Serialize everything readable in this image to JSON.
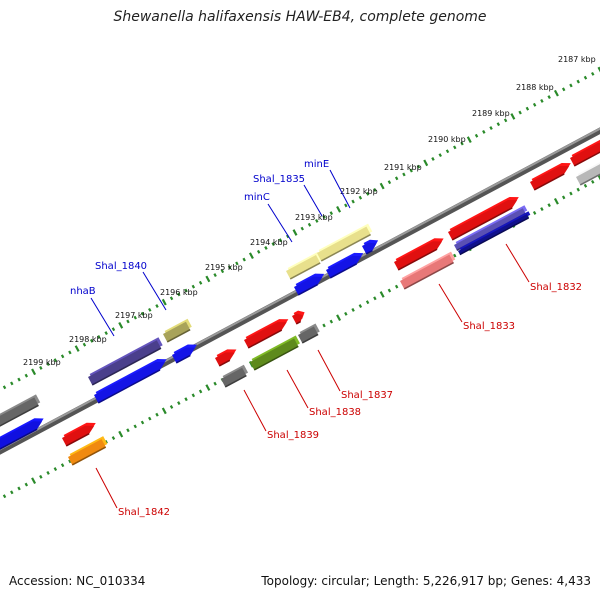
{
  "title": "Shewanella halifaxensis HAW-EB4, complete genome",
  "footer": {
    "accession": "Accession: NC_010334",
    "summary": "Topology: circular; Length: 5,226,917 bp; Genes: 4,433"
  },
  "colors": {
    "backbone": "#7a7a7a",
    "tick": "#2a8a2a",
    "label_forward": "#0000cc",
    "label_reverse": "#cc0000"
  },
  "scale_ticks": [
    {
      "label": "2187 kbp",
      "kbp": 2187
    },
    {
      "label": "2188 kbp",
      "kbp": 2188
    },
    {
      "label": "2189 kbp",
      "kbp": 2189
    },
    {
      "label": "2190 kbp",
      "kbp": 2190
    },
    {
      "label": "2191 kbp",
      "kbp": 2191
    },
    {
      "label": "2192 kbp",
      "kbp": 2192
    },
    {
      "label": "2193 kbp",
      "kbp": 2193
    },
    {
      "label": "2194 kbp",
      "kbp": 2194
    },
    {
      "label": "2195 kbp",
      "kbp": 2195
    },
    {
      "label": "2196 kbp",
      "kbp": 2196
    },
    {
      "label": "2197 kbp",
      "kbp": 2197
    },
    {
      "label": "2198 kbp",
      "kbp": 2198
    },
    {
      "label": "2199 kbp",
      "kbp": 2199
    }
  ],
  "gene_labels": [
    {
      "id": "minE",
      "text": "minE",
      "strand": "forward"
    },
    {
      "id": "shal1835",
      "text": "Shal_1835",
      "strand": "forward"
    },
    {
      "id": "minC",
      "text": "minC",
      "strand": "forward"
    },
    {
      "id": "shal1840",
      "text": "Shal_1840",
      "strand": "forward"
    },
    {
      "id": "nhaB",
      "text": "nhaB",
      "strand": "forward"
    },
    {
      "id": "shal1832",
      "text": "Shal_1832",
      "strand": "reverse"
    },
    {
      "id": "shal1833",
      "text": "Shal_1833",
      "strand": "reverse"
    },
    {
      "id": "shal1837",
      "text": "Shal_1837",
      "strand": "reverse"
    },
    {
      "id": "shal1838",
      "text": "Shal_1838",
      "strand": "reverse"
    },
    {
      "id": "shal1839",
      "text": "Shal_1839",
      "strand": "reverse"
    },
    {
      "id": "shal1842",
      "text": "Shal_1842",
      "strand": "reverse"
    }
  ],
  "features": [
    {
      "name": "feature-gray-far-left",
      "color": "#666666"
    },
    {
      "name": "feature-blue-far-left",
      "color": "#1010e0"
    },
    {
      "name": "feature-nhaB-cds",
      "color": "#4a3f8c"
    },
    {
      "name": "feature-nhaB-gene",
      "color": "#1414e6"
    },
    {
      "name": "feature-shal1840-cds",
      "color": "#a8a35a"
    },
    {
      "name": "feature-shal1840-gene",
      "color": "#1414e6"
    },
    {
      "name": "feature-shal1842-gene",
      "color": "#e01010"
    },
    {
      "name": "feature-shal1842-cds",
      "color": "#f08a10"
    },
    {
      "name": "feature-shal1839-gene",
      "color": "#e01010"
    },
    {
      "name": "feature-shal1839-cds",
      "color": "#666666"
    },
    {
      "name": "feature-shal1838-gene",
      "color": "#e01010"
    },
    {
      "name": "feature-shal1838-cds",
      "color": "#5e8a1c"
    },
    {
      "name": "feature-shal1837-gene",
      "color": "#e01010"
    },
    {
      "name": "feature-shal1837-cds",
      "color": "#666666"
    },
    {
      "name": "feature-minC-cds",
      "color": "#e8e08c"
    },
    {
      "name": "feature-minC-gene",
      "color": "#1414e6"
    },
    {
      "name": "feature-shal1835-cds",
      "color": "#e8e08c"
    },
    {
      "name": "feature-shal1835-gene",
      "color": "#1414e6"
    },
    {
      "name": "feature-minE-gene",
      "color": "#1414e6"
    },
    {
      "name": "feature-shal1833-gene",
      "color": "#e01010"
    },
    {
      "name": "feature-shal1833-cds",
      "color": "#e87878"
    },
    {
      "name": "feature-shal1832-gene",
      "color": "#e01010"
    },
    {
      "name": "feature-shal1832-cds",
      "color": "#5a50b4"
    },
    {
      "name": "feature-shal1832-cds-dark",
      "color": "#10108c"
    },
    {
      "name": "feature-red-right",
      "color": "#e01010"
    },
    {
      "name": "feature-red-far-right",
      "color": "#e01010"
    },
    {
      "name": "feature-gray-far-right",
      "color": "#b8b8b8"
    }
  ]
}
